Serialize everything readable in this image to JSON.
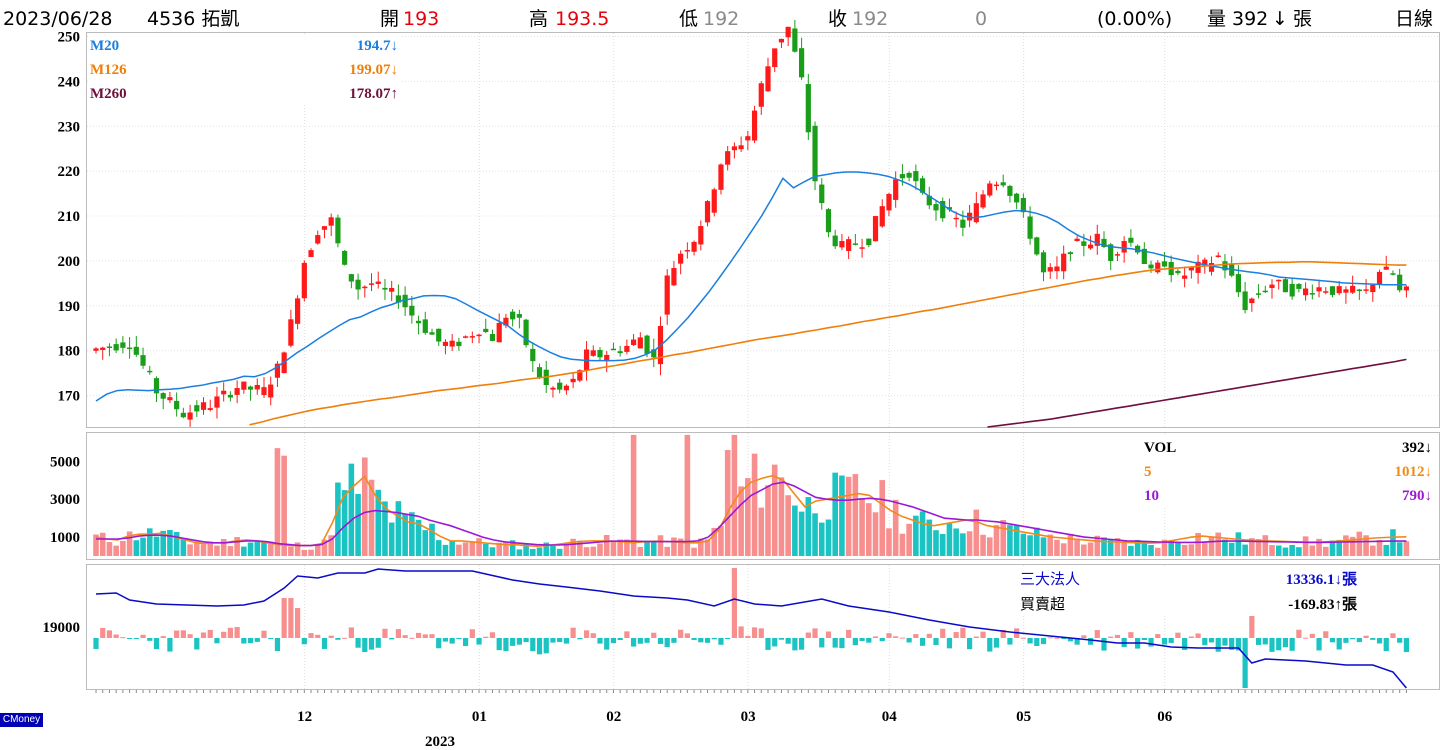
{
  "header": {
    "date": "2023/06/28",
    "stock": "4536 拓凱",
    "open_label": "開",
    "open": "193",
    "high_label": "高",
    "high": "193.5",
    "low_label": "低",
    "low": "192",
    "close_label": "收",
    "close": "192",
    "change": "0",
    "change_pct": "(0.00%)",
    "volume_label": "量",
    "volume": "392",
    "volume_arrow": "↓",
    "volume_unit": "張",
    "period": "日線"
  },
  "colors": {
    "up": "#ff1a1a",
    "down": "#1a9e1a",
    "m20": "#1a7fe0",
    "m126": "#ef7f0a",
    "m260": "#6e0f3c",
    "vol_up": "#f78f8f",
    "vol_down": "#1bc3c3",
    "vol5": "#f28a1a",
    "vol10": "#9b19d6",
    "inst_line": "#0a0ac8",
    "header_red": "#e8000b",
    "header_gray": "#8a8a8a"
  },
  "legend_price": [
    {
      "name": "M20",
      "value": "194.7↓"
    },
    {
      "name": "M126",
      "value": "199.07↓"
    },
    {
      "name": "M260",
      "value": "178.07↑"
    }
  ],
  "legend_volume": [
    {
      "name": "VOL",
      "value": "392↓"
    },
    {
      "name": "5",
      "value": "1012↓"
    },
    {
      "name": "10",
      "value": "790↓"
    }
  ],
  "legend_inst": [
    {
      "name": "三大法人",
      "value": "13336.1↓張"
    },
    {
      "name": "買賣超",
      "value": "-169.83↑張"
    }
  ],
  "watermark": "CMoney",
  "chart_data": {
    "type": "candlestick",
    "price_ticks": [
      250,
      240,
      230,
      220,
      210,
      200,
      190,
      180,
      170
    ],
    "price_range": [
      163,
      251
    ],
    "volume_ticks": [
      5000,
      3000,
      1000
    ],
    "volume_range": [
      0,
      6500
    ],
    "inst_ticks": [
      19000
    ],
    "months": [
      {
        "label": "12",
        "index": 30
      },
      {
        "label": "01",
        "index": 56
      },
      {
        "label": "02",
        "index": 76
      },
      {
        "label": "03",
        "index": 96
      },
      {
        "label": "04",
        "index": 117
      },
      {
        "label": "05",
        "index": 137
      },
      {
        "label": "06",
        "index": 158
      }
    ],
    "year_label": "2023",
    "series": [
      {
        "name": "M20",
        "values": [
          168.8,
          170.3,
          171.1,
          171.3,
          171.2,
          171.1,
          171.3,
          171.4,
          171.6,
          172,
          172.3,
          172.8,
          173.2,
          173.6,
          174.3,
          174.2,
          174.9,
          176.2,
          177.8,
          179.5,
          181,
          182.6,
          184.1,
          185.6,
          186.9,
          187.5,
          188.6,
          189.6,
          190.3,
          191.2,
          191.6,
          192.2,
          192.3,
          192.2,
          191.6,
          190.4,
          189.1,
          187.9,
          186.7,
          185.5,
          183.7,
          182.1,
          180.8,
          179.6,
          178.6,
          178.1,
          177.9,
          177.8,
          177.8,
          177.8,
          177.9,
          178.3,
          179.1,
          180.3,
          182.4,
          184.8,
          187.3,
          190.2,
          193.1,
          196.3,
          199.6,
          203,
          206.5,
          210.1,
          214.1,
          218.4,
          216.3,
          217.6,
          218.8,
          219.2,
          219.6,
          219.8,
          219.8,
          219.6,
          219.3,
          218.8,
          218,
          217,
          215.7,
          214.2,
          212.7,
          211.1,
          210,
          209.6,
          209.9,
          210.4,
          210.9,
          211.2,
          211.1,
          210.6,
          209.8,
          208.6,
          207,
          205.6,
          204.6,
          203.7,
          203.2,
          202.9,
          202.7,
          202.2,
          201.8,
          201.2,
          200.6,
          200.1,
          199.6,
          199.1,
          198.7,
          198.3,
          197.9,
          197.6,
          197.3,
          196.9,
          196.4,
          196.2,
          196,
          195.8,
          195.6,
          195.4,
          195.1,
          195,
          194.9,
          194.8,
          194.7,
          194.7,
          194.7
        ]
      },
      {
        "name": "M126",
        "values": [
          158.4,
          158.7,
          159,
          159.3,
          159.5,
          159.9,
          160.2,
          160.5,
          160.9,
          161.4,
          161.9,
          162.4,
          162.9,
          163.5,
          164.1,
          164.8,
          165.4,
          166,
          166.6,
          167.1,
          167.5,
          168,
          168.4,
          168.8,
          169.2,
          169.5,
          169.9,
          170.3,
          170.7,
          171.1,
          171.4,
          171.7,
          172.1,
          172.4,
          172.7,
          173.1,
          173.5,
          173.8,
          174.1,
          174.5,
          174.9,
          175.3,
          175.8,
          176.3,
          176.7,
          177.2,
          177.7,
          178.1,
          178.6,
          179.1,
          179.5,
          180,
          180.5,
          181,
          181.5,
          182,
          182.5,
          182.9,
          183.3,
          183.7,
          184.2,
          184.6,
          185.1,
          185.5,
          186,
          186.5,
          186.9,
          187.4,
          187.8,
          188.3,
          188.8,
          189.2,
          189.7,
          190.2,
          190.7,
          191.2,
          191.7,
          192.2,
          192.7,
          193.2,
          193.7,
          194.2,
          194.7,
          195.2,
          195.7,
          196.1,
          196.6,
          197,
          197.4,
          197.8,
          198.1,
          198.3,
          198.5,
          198.7,
          198.9,
          199.1,
          199.3,
          199.4,
          199.5,
          199.6,
          199.7,
          199.7,
          199.8,
          199.8,
          199.7,
          199.6,
          199.5,
          199.4,
          199.3,
          199.2,
          199.1,
          199.07
        ]
      },
      {
        "name": "M260",
        "values": [
          154.2,
          154.3,
          154.4,
          154.5,
          154.6,
          154.7,
          154.8,
          154.9,
          155,
          155.1,
          155.2,
          155.3,
          155.4,
          155.5,
          155.6,
          155.7,
          155.8,
          155.9,
          156,
          156.1,
          156.2,
          156.3,
          156.4,
          156.5,
          156.6,
          156.7,
          156.8,
          156.9,
          157,
          157.1,
          157.2,
          157.3,
          157.4,
          157.5,
          157.6,
          157.7,
          157.8,
          157.9,
          158,
          158.1,
          158.2,
          158.3,
          158.4,
          158.5,
          158.6,
          158.7,
          158.8,
          158.9,
          159,
          159.1,
          159.2,
          159.3,
          159.4,
          159.5,
          159.6,
          159.7,
          159.8,
          159.9,
          160,
          160.1,
          160.2,
          160.3,
          160.4,
          160.5,
          160.6,
          160.7,
          160.8,
          160.9,
          161,
          161.1,
          161.2,
          161.3,
          161.4,
          161.5,
          161.6,
          161.7,
          161.8,
          161.9,
          162,
          162.2,
          162.4,
          162.6,
          162.8,
          163,
          163.3,
          163.6,
          163.9,
          164.2,
          164.5,
          164.8,
          165.2,
          165.6,
          166,
          166.4,
          166.8,
          167.2,
          167.6,
          168,
          168.4,
          168.8,
          169.2,
          169.6,
          170,
          170.4,
          170.8,
          171.2,
          171.6,
          172,
          172.4,
          172.8,
          173.2,
          173.6,
          174,
          174.4,
          174.8,
          175.2,
          175.6,
          176,
          176.4,
          176.8,
          177.2,
          177.6,
          178.07
        ]
      },
      {
        "name": "VOL5",
        "values": [
          1000,
          900,
          850,
          1050,
          1150,
          1150,
          1200,
          1050,
          900,
          750,
          650,
          700,
          700,
          800,
          850,
          800,
          700,
          600,
          550,
          550,
          550,
          650,
          1750,
          3100,
          3700,
          4200,
          3200,
          2500,
          2150,
          1800,
          1700,
          1400,
          1050,
          800,
          800,
          750,
          700,
          650,
          600,
          600,
          550,
          520,
          550,
          620,
          700,
          760,
          800,
          800,
          780,
          750,
          700,
          750,
          780,
          760,
          740,
          700,
          700,
          800,
          1400,
          2500,
          3400,
          3900,
          4100,
          4250,
          4000,
          3300,
          2600,
          2900,
          3000,
          3100,
          3200,
          3300,
          3200,
          2800,
          2400,
          2100,
          1900,
          1700,
          1600,
          1700,
          1800,
          1900,
          1800,
          1600,
          1500,
          1400,
          1300,
          1200,
          1100,
          1000,
          950,
          900,
          850,
          800,
          760,
          740,
          720,
          700,
          680,
          700,
          800,
          900,
          1000,
          1050,
          1000,
          950,
          900,
          850,
          820,
          800,
          780,
          760,
          740,
          730,
          740,
          760,
          800,
          850,
          900,
          950,
          980,
          1000,
          1012
        ]
      },
      {
        "name": "VOL10",
        "values": [
          900,
          900,
          900,
          950,
          1050,
          1100,
          1100,
          1050,
          950,
          850,
          750,
          700,
          700,
          750,
          800,
          800,
          750,
          650,
          600,
          550,
          550,
          600,
          900,
          1500,
          2000,
          2300,
          2400,
          2350,
          2300,
          2200,
          2100,
          1900,
          1750,
          1600,
          1400,
          1200,
          1000,
          850,
          750,
          700,
          650,
          600,
          580,
          580,
          600,
          650,
          700,
          750,
          780,
          790,
          780,
          770,
          760,
          760,
          760,
          760,
          800,
          1000,
          1500,
          2100,
          2700,
          3200,
          3500,
          3800,
          3900,
          3700,
          3400,
          3100,
          3000,
          2950,
          2950,
          3000,
          3050,
          3000,
          2900,
          2750,
          2600,
          2400,
          2200,
          2000,
          1950,
          1900,
          1900,
          1850,
          1800,
          1700,
          1600,
          1500,
          1400,
          1300,
          1200,
          1100,
          1000,
          950,
          900,
          850,
          800,
          780,
          760,
          740,
          730,
          720,
          720,
          730,
          760,
          790,
          790,
          780,
          770,
          760,
          750,
          740,
          730,
          720,
          720,
          730,
          740,
          750,
          760,
          770,
          780,
          790,
          790
        ]
      },
      {
        "name": "三大法人",
        "values": []
      }
    ],
    "legend": "top-right",
    "grid": true
  }
}
